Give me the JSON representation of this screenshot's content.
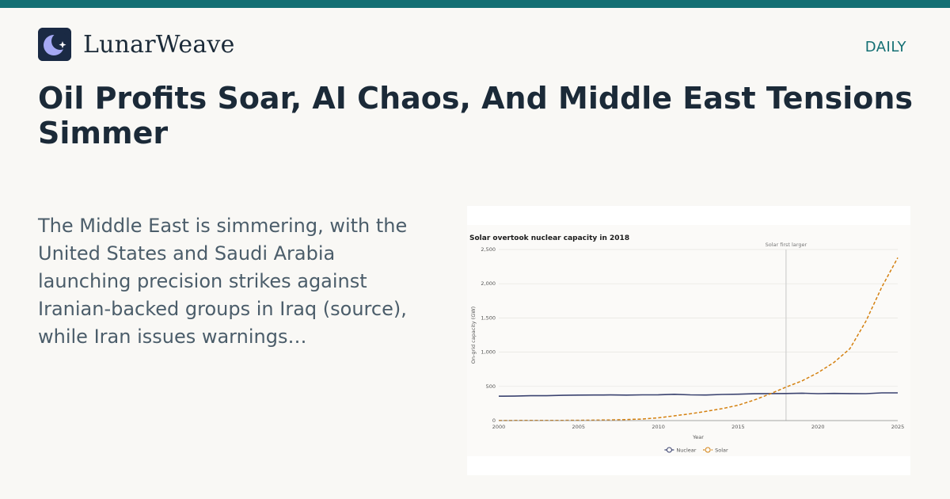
{
  "site": {
    "name": "LunarWeave",
    "tag": "DAILY",
    "accent": "#136f73",
    "logo_icon": "moon-star-icon"
  },
  "article": {
    "headline": "Oil Profits Soar, AI Chaos, And Middle East Tensions Simmer",
    "summary": "The Middle East is simmering, with the United States and Saudi Arabia launching precision strikes against Iranian-backed groups in Iraq (source), while Iran issues warnings…"
  },
  "chart_data": {
    "type": "line",
    "title": "Solar overtook nuclear capacity in 2018",
    "xlabel": "Year",
    "ylabel": "On-grid capacity (GW)",
    "xlim": [
      2000,
      2025
    ],
    "ylim": [
      0,
      2500
    ],
    "xticks": [
      2000,
      2005,
      2010,
      2015,
      2020,
      2025
    ],
    "yticks": [
      0,
      500,
      1000,
      1500,
      2000,
      2500
    ],
    "ytick_labels": [
      "0",
      "500",
      "1,000",
      "1,500",
      "2,000",
      "2,500"
    ],
    "grid": true,
    "legend_position": "bottom-center",
    "annotation": {
      "x": 2018,
      "label": "Solar first larger"
    },
    "x": [
      2000,
      2001,
      2002,
      2003,
      2004,
      2005,
      2006,
      2007,
      2008,
      2009,
      2010,
      2011,
      2012,
      2013,
      2014,
      2015,
      2016,
      2017,
      2018,
      2019,
      2020,
      2021,
      2022,
      2023,
      2024,
      2025
    ],
    "series": [
      {
        "name": "Nuclear",
        "color": "#3b4370",
        "dash": "solid",
        "values": [
          357,
          358,
          363,
          364,
          369,
          373,
          374,
          375,
          373,
          376,
          377,
          384,
          376,
          374,
          382,
          385,
          392,
          395,
          396,
          400,
          393,
          397,
          395,
          394,
          405,
          405
        ]
      },
      {
        "name": "Solar",
        "color": "#d4800f",
        "dash": "dashed",
        "values": [
          1,
          2,
          2,
          3,
          4,
          5,
          7,
          9,
          15,
          23,
          40,
          70,
          100,
          135,
          175,
          225,
          300,
          390,
          490,
          580,
          700,
          850,
          1050,
          1450,
          1950,
          2380
        ]
      }
    ]
  }
}
